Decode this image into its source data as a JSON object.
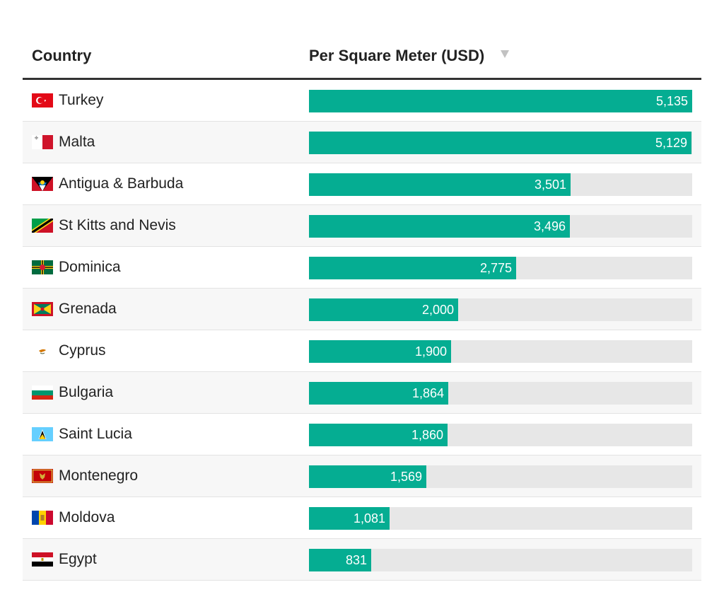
{
  "header": {
    "country_label": "Country",
    "value_label": "Per Square Meter (USD)"
  },
  "colors": {
    "bar": "#05ad92",
    "track": "#e7e7e7"
  },
  "rows": [
    {
      "country": "Turkey",
      "value_label": "5,135",
      "flag_icon": "turkey-flag-icon"
    },
    {
      "country": "Malta",
      "value_label": "5,129",
      "flag_icon": "malta-flag-icon"
    },
    {
      "country": "Antigua & Barbuda",
      "value_label": "3,501",
      "flag_icon": "antigua-barbuda-flag-icon"
    },
    {
      "country": "St Kitts and Nevis",
      "value_label": "3,496",
      "flag_icon": "st-kitts-nevis-flag-icon"
    },
    {
      "country": "Dominica",
      "value_label": "2,775",
      "flag_icon": "dominica-flag-icon"
    },
    {
      "country": "Grenada",
      "value_label": "2,000",
      "flag_icon": "grenada-flag-icon"
    },
    {
      "country": "Cyprus",
      "value_label": "1,900",
      "flag_icon": "cyprus-flag-icon"
    },
    {
      "country": "Bulgaria",
      "value_label": "1,864",
      "flag_icon": "bulgaria-flag-icon"
    },
    {
      "country": "Saint Lucia",
      "value_label": "1,860",
      "flag_icon": "saint-lucia-flag-icon"
    },
    {
      "country": "Montenegro",
      "value_label": "1,569",
      "flag_icon": "montenegro-flag-icon"
    },
    {
      "country": "Moldova",
      "value_label": "1,081",
      "flag_icon": "moldova-flag-icon"
    },
    {
      "country": "Egypt",
      "value_label": "831",
      "flag_icon": "egypt-flag-icon"
    }
  ],
  "chart_data": {
    "type": "bar",
    "orientation": "horizontal",
    "categories": [
      "Turkey",
      "Malta",
      "Antigua & Barbuda",
      "St Kitts and Nevis",
      "Dominica",
      "Grenada",
      "Cyprus",
      "Bulgaria",
      "Saint Lucia",
      "Montenegro",
      "Moldova",
      "Egypt"
    ],
    "values": [
      5135,
      5129,
      3501,
      3496,
      2775,
      2000,
      1900,
      1864,
      1860,
      1569,
      1081,
      831
    ],
    "ylabel": "Per Square Meter (USD)",
    "sort": "descending",
    "grid": false
  }
}
